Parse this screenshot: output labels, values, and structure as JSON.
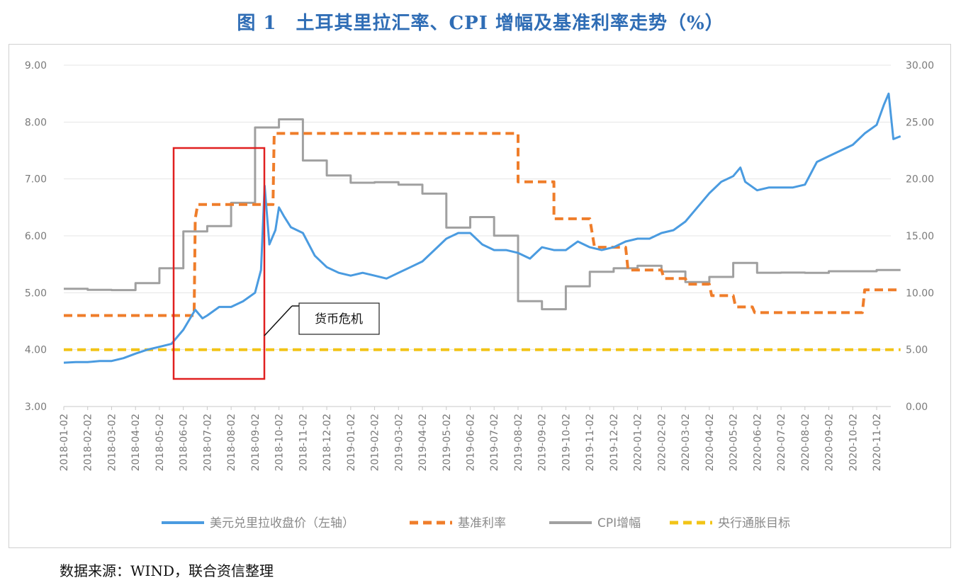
{
  "title": "图 1　土耳其里拉汇率、CPI 增幅及基准利率走势（%）",
  "source": "数据来源：WIND，联合资信整理",
  "colors": {
    "fx": "#4a9be0",
    "rate": "#ef7d2a",
    "cpi": "#a0a0a0",
    "target": "#f2c417",
    "box": "#e02020",
    "title": "#2f6db5"
  },
  "chart_data": {
    "type": "line",
    "title": "图 1　土耳其里拉汇率、CPI 增幅及基准利率走势（%）",
    "x_categories": [
      "2018-01-02",
      "2018-02-02",
      "2018-03-02",
      "2018-04-02",
      "2018-05-02",
      "2018-06-02",
      "2018-07-02",
      "2018-08-02",
      "2018-09-02",
      "2018-10-02",
      "2018-11-02",
      "2018-12-02",
      "2019-01-02",
      "2019-02-02",
      "2019-03-02",
      "2019-04-02",
      "2019-05-02",
      "2019-06-02",
      "2019-07-02",
      "2019-08-02",
      "2019-09-02",
      "2019-10-02",
      "2019-11-02",
      "2019-12-02",
      "2020-01-02",
      "2020-02-02",
      "2020-03-02",
      "2020-04-02",
      "2020-05-02",
      "2020-06-02",
      "2020-07-02",
      "2020-08-02",
      "2020-09-02",
      "2020-10-02",
      "2020-11-02"
    ],
    "y_left_ticks": [
      "3.00",
      "4.00",
      "5.00",
      "6.00",
      "7.00",
      "8.00",
      "9.00"
    ],
    "y_right_ticks": [
      "0.00",
      "5.00",
      "10.00",
      "15.00",
      "20.00",
      "25.00",
      "30.00"
    ],
    "y_left_range": [
      3,
      9
    ],
    "y_right_range": [
      0,
      30
    ],
    "series": [
      {
        "name": "美元兑里拉收盘价（左轴）",
        "axis": "left",
        "style": "solid",
        "points": [
          [
            0,
            3.77
          ],
          [
            0.5,
            3.78
          ],
          [
            1,
            3.78
          ],
          [
            1.5,
            3.8
          ],
          [
            2,
            3.8
          ],
          [
            2.5,
            3.85
          ],
          [
            3,
            3.93
          ],
          [
            3.5,
            4.0
          ],
          [
            4,
            4.05
          ],
          [
            4.5,
            4.1
          ],
          [
            5,
            4.35
          ],
          [
            5.5,
            4.7
          ],
          [
            5.8,
            4.55
          ],
          [
            6,
            4.6
          ],
          [
            6.5,
            4.75
          ],
          [
            7,
            4.75
          ],
          [
            7.5,
            4.85
          ],
          [
            8,
            5.0
          ],
          [
            8.25,
            5.4
          ],
          [
            8.4,
            6.88
          ],
          [
            8.6,
            5.85
          ],
          [
            8.85,
            6.1
          ],
          [
            9,
            6.5
          ],
          [
            9.2,
            6.35
          ],
          [
            9.5,
            6.15
          ],
          [
            10,
            6.05
          ],
          [
            10.5,
            5.65
          ],
          [
            11,
            5.45
          ],
          [
            11.5,
            5.35
          ],
          [
            12,
            5.3
          ],
          [
            12.5,
            5.35
          ],
          [
            13,
            5.3
          ],
          [
            13.5,
            5.25
          ],
          [
            14,
            5.35
          ],
          [
            14.5,
            5.45
          ],
          [
            15,
            5.55
          ],
          [
            15.5,
            5.75
          ],
          [
            16,
            5.95
          ],
          [
            16.5,
            6.05
          ],
          [
            17,
            6.05
          ],
          [
            17.5,
            5.85
          ],
          [
            18,
            5.75
          ],
          [
            18.5,
            5.75
          ],
          [
            19,
            5.7
          ],
          [
            19.5,
            5.6
          ],
          [
            20,
            5.8
          ],
          [
            20.5,
            5.75
          ],
          [
            21,
            5.75
          ],
          [
            21.5,
            5.9
          ],
          [
            22,
            5.8
          ],
          [
            22.5,
            5.75
          ],
          [
            23,
            5.8
          ],
          [
            23.5,
            5.9
          ],
          [
            24,
            5.95
          ],
          [
            24.5,
            5.95
          ],
          [
            25,
            6.05
          ],
          [
            25.5,
            6.1
          ],
          [
            26,
            6.25
          ],
          [
            26.5,
            6.5
          ],
          [
            27,
            6.75
          ],
          [
            27.5,
            6.95
          ],
          [
            28,
            7.05
          ],
          [
            28.3,
            7.2
          ],
          [
            28.5,
            6.95
          ],
          [
            29,
            6.8
          ],
          [
            29.5,
            6.85
          ],
          [
            30,
            6.85
          ],
          [
            30.5,
            6.85
          ],
          [
            31,
            6.9
          ],
          [
            31.5,
            7.3
          ],
          [
            32,
            7.4
          ],
          [
            32.5,
            7.5
          ],
          [
            33,
            7.6
          ],
          [
            33.5,
            7.8
          ],
          [
            34,
            7.95
          ],
          [
            34.3,
            8.3
          ],
          [
            34.5,
            8.5
          ],
          [
            34.7,
            7.7
          ],
          [
            35,
            7.75
          ]
        ]
      },
      {
        "name": "基准利率",
        "axis": "right",
        "style": "dashed",
        "points": [
          [
            0,
            8.0
          ],
          [
            5,
            8.0
          ],
          [
            5.45,
            8.0
          ],
          [
            5.5,
            16.5
          ],
          [
            5.6,
            17.75
          ],
          [
            8.75,
            17.75
          ],
          [
            8.8,
            24.0
          ],
          [
            19,
            24.0
          ],
          [
            19,
            19.75
          ],
          [
            20.5,
            19.75
          ],
          [
            20.5,
            16.5
          ],
          [
            22,
            16.5
          ],
          [
            22.2,
            14.0
          ],
          [
            23.5,
            14.0
          ],
          [
            23.6,
            12.0
          ],
          [
            25,
            12.0
          ],
          [
            25.1,
            11.25
          ],
          [
            26,
            11.25
          ],
          [
            26.1,
            10.75
          ],
          [
            27,
            10.75
          ],
          [
            27.1,
            9.75
          ],
          [
            28,
            9.75
          ],
          [
            28.1,
            8.75
          ],
          [
            28.8,
            8.75
          ],
          [
            28.9,
            8.25
          ],
          [
            33.4,
            8.25
          ],
          [
            33.5,
            10.25
          ],
          [
            35,
            10.25
          ]
        ]
      },
      {
        "name": "CPI增幅",
        "axis": "right",
        "style": "solid",
        "points": [
          [
            0,
            10.35
          ],
          [
            1,
            10.35
          ],
          [
            1,
            10.26
          ],
          [
            2,
            10.26
          ],
          [
            2,
            10.23
          ],
          [
            3,
            10.23
          ],
          [
            3,
            10.85
          ],
          [
            4,
            10.85
          ],
          [
            4,
            12.15
          ],
          [
            5,
            12.15
          ],
          [
            5,
            15.39
          ],
          [
            6,
            15.39
          ],
          [
            6,
            15.85
          ],
          [
            7,
            15.85
          ],
          [
            7,
            17.9
          ],
          [
            8,
            17.9
          ],
          [
            8,
            24.52
          ],
          [
            9,
            24.52
          ],
          [
            9,
            25.24
          ],
          [
            10,
            25.24
          ],
          [
            10,
            21.62
          ],
          [
            11,
            21.62
          ],
          [
            11,
            20.3
          ],
          [
            12,
            20.3
          ],
          [
            12,
            19.67
          ],
          [
            13,
            19.67
          ],
          [
            13,
            19.71
          ],
          [
            14,
            19.71
          ],
          [
            14,
            19.5
          ],
          [
            15,
            19.5
          ],
          [
            15,
            18.71
          ],
          [
            16,
            18.71
          ],
          [
            16,
            15.72
          ],
          [
            17,
            15.72
          ],
          [
            17,
            16.65
          ],
          [
            18,
            16.65
          ],
          [
            18,
            15.01
          ],
          [
            19,
            15.01
          ],
          [
            19,
            9.26
          ],
          [
            20,
            9.26
          ],
          [
            20,
            8.55
          ],
          [
            21,
            8.55
          ],
          [
            21,
            10.56
          ],
          [
            22,
            10.56
          ],
          [
            22,
            11.84
          ],
          [
            23,
            11.84
          ],
          [
            23,
            12.15
          ],
          [
            24,
            12.15
          ],
          [
            24,
            12.37
          ],
          [
            25,
            12.37
          ],
          [
            25,
            11.86
          ],
          [
            26,
            11.86
          ],
          [
            26,
            10.94
          ],
          [
            27,
            10.94
          ],
          [
            27,
            11.39
          ],
          [
            28,
            11.39
          ],
          [
            28,
            12.62
          ],
          [
            29,
            12.62
          ],
          [
            29,
            11.76
          ],
          [
            30,
            11.76
          ],
          [
            30,
            11.77
          ],
          [
            31,
            11.77
          ],
          [
            31,
            11.75
          ],
          [
            32,
            11.75
          ],
          [
            32,
            11.89
          ],
          [
            33,
            11.89
          ],
          [
            33,
            11.89
          ],
          [
            34,
            11.89
          ],
          [
            34,
            12.0
          ],
          [
            35,
            12.0
          ]
        ]
      },
      {
        "name": "央行通胀目标",
        "axis": "right",
        "style": "dashed",
        "points": [
          [
            0,
            5.0
          ],
          [
            35,
            5.0
          ]
        ]
      }
    ],
    "annotation": "货币危机",
    "legend_position": "bottom"
  }
}
